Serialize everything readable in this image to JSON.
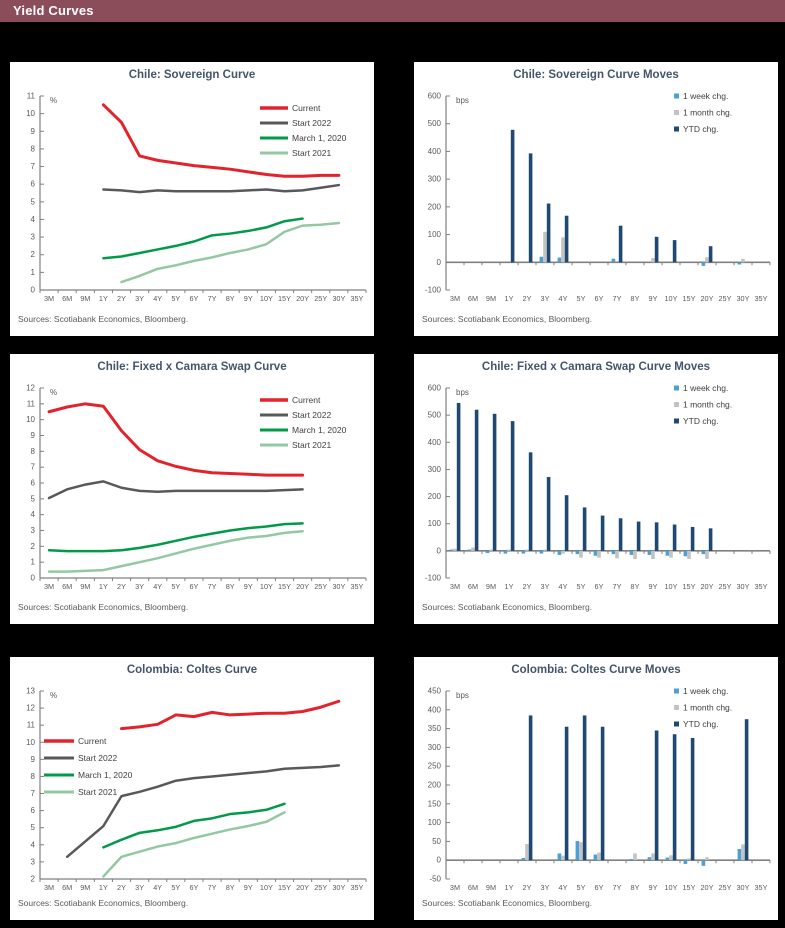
{
  "header": {
    "title": "Yield Curves"
  },
  "colors": {
    "header_bg": "#8C4D5B",
    "page_bg": "#000000",
    "panel_border": "#000000",
    "axis": "#808080",
    "tick_text": "#595959",
    "title_text": "#44546A",
    "legend_text": "#404040",
    "current_red": "#E3232C",
    "start2022_gray": "#58595B",
    "march2020_green": "#009A49",
    "start2021_sage": "#93C8A3",
    "week_blue": "#4BA0D6",
    "month_gray": "#C3C3C3",
    "ytd_navy": "#1F4872"
  },
  "source_note": "Sources: Scotiabank Economics, Bloomberg.",
  "categories": [
    "3M",
    "6M",
    "9M",
    "1Y",
    "2Y",
    "3Y",
    "4Y",
    "5Y",
    "6Y",
    "7Y",
    "8Y",
    "9Y",
    "10Y",
    "15Y",
    "20Y",
    "25Y",
    "30Y",
    "35Y"
  ],
  "chart_data": [
    {
      "type": "line",
      "title": "Chile:  Sovereign Curve",
      "unit": "%",
      "ylim": [
        0,
        11
      ],
      "ytick_step": 1,
      "legend_pos": "tr",
      "series": [
        {
          "name": "Current",
          "color": "#E3232C",
          "values": [
            null,
            null,
            null,
            10.5,
            9.5,
            7.6,
            7.35,
            7.2,
            7.05,
            6.95,
            6.85,
            6.7,
            6.55,
            6.45,
            6.45,
            6.5,
            6.5,
            null
          ]
        },
        {
          "name": "Start 2022",
          "color": "#58595B",
          "values": [
            null,
            null,
            null,
            5.7,
            5.65,
            5.55,
            5.65,
            5.6,
            5.6,
            5.6,
            5.6,
            5.65,
            5.7,
            5.6,
            5.65,
            5.8,
            5.95,
            null
          ]
        },
        {
          "name": "March 1, 2020",
          "color": "#009A49",
          "values": [
            null,
            null,
            null,
            1.8,
            1.9,
            2.1,
            2.3,
            2.5,
            2.75,
            3.1,
            3.2,
            3.35,
            3.55,
            3.9,
            4.05,
            null,
            null,
            null
          ]
        },
        {
          "name": "Start 2021",
          "color": "#93C8A3",
          "values": [
            null,
            null,
            null,
            null,
            0.45,
            0.8,
            1.2,
            1.4,
            1.65,
            1.85,
            2.1,
            2.3,
            2.6,
            3.3,
            3.65,
            3.7,
            3.8,
            null
          ]
        }
      ]
    },
    {
      "type": "bar",
      "title": "Chile:  Sovereign Curve Moves",
      "unit": "bps",
      "ylim": [
        -100,
        600
      ],
      "ytick_step": 100,
      "legend_pos": "tr",
      "series": [
        {
          "name": "1 week chg.",
          "color": "#4BA0D6",
          "values": [
            null,
            null,
            null,
            null,
            null,
            20,
            17,
            null,
            null,
            13,
            null,
            null,
            null,
            null,
            -13,
            null,
            -8,
            null
          ]
        },
        {
          "name": "1 month chg.",
          "color": "#C3C3C3",
          "values": [
            null,
            null,
            null,
            null,
            null,
            110,
            90,
            null,
            null,
            null,
            null,
            15,
            null,
            null,
            18,
            null,
            12,
            null
          ]
        },
        {
          "name": "YTD chg.",
          "color": "#1F4872",
          "values": [
            null,
            null,
            null,
            478,
            393,
            212,
            168,
            null,
            null,
            132,
            null,
            92,
            80,
            null,
            58,
            null,
            null,
            null
          ]
        }
      ]
    },
    {
      "type": "line",
      "title": "Chile:  Fixed x Camara Swap Curve",
      "unit": "%",
      "ylim": [
        0,
        12
      ],
      "ytick_step": 1,
      "legend_pos": "tr",
      "series": [
        {
          "name": "Current",
          "color": "#E3232C",
          "values": [
            10.5,
            10.8,
            11.0,
            10.85,
            9.3,
            8.1,
            7.4,
            7.05,
            6.8,
            6.65,
            6.6,
            6.55,
            6.5,
            6.5,
            6.5,
            null,
            null,
            null
          ]
        },
        {
          "name": "Start 2022",
          "color": "#58595B",
          "values": [
            5.05,
            5.6,
            5.9,
            6.1,
            5.7,
            5.5,
            5.45,
            5.5,
            5.5,
            5.5,
            5.5,
            5.5,
            5.5,
            5.55,
            5.6,
            null,
            null,
            null
          ]
        },
        {
          "name": "March 1, 2020",
          "color": "#009A49",
          "values": [
            1.75,
            1.7,
            1.7,
            1.7,
            1.75,
            1.9,
            2.1,
            2.35,
            2.6,
            2.8,
            3.0,
            3.15,
            3.25,
            3.4,
            3.45,
            null,
            null,
            null
          ]
        },
        {
          "name": "Start 2021",
          "color": "#93C8A3",
          "values": [
            0.4,
            0.4,
            0.45,
            0.5,
            0.75,
            1.0,
            1.25,
            1.55,
            1.85,
            2.1,
            2.35,
            2.55,
            2.65,
            2.85,
            2.95,
            null,
            null,
            null
          ]
        }
      ]
    },
    {
      "type": "bar",
      "title": "Chile:  Fixed x Camara Swap Curve Moves",
      "unit": "bps",
      "ylim": [
        -100,
        600
      ],
      "ytick_step": 100,
      "legend_pos": "tr",
      "series": [
        {
          "name": "1 week chg.",
          "color": "#4BA0D6",
          "values": [
            5,
            5,
            -8,
            -10,
            -10,
            -10,
            -15,
            -12,
            -18,
            -12,
            -15,
            -15,
            -18,
            -20,
            -12,
            null,
            null,
            null
          ]
        },
        {
          "name": "1 month chg.",
          "color": "#C3C3C3",
          "values": [
            8,
            12,
            5,
            5,
            5,
            5,
            -10,
            -25,
            -25,
            -28,
            -30,
            -30,
            -25,
            -30,
            -30,
            null,
            null,
            null
          ]
        },
        {
          "name": "YTD chg.",
          "color": "#1F4872",
          "values": [
            545,
            520,
            505,
            478,
            363,
            272,
            205,
            160,
            130,
            120,
            108,
            105,
            97,
            88,
            83,
            null,
            null,
            null
          ]
        }
      ]
    },
    {
      "type": "line",
      "title": "Colombia:  Coltes Curve",
      "unit": "%",
      "ylim": [
        2,
        13
      ],
      "ytick_step": 1,
      "legend_pos": "left",
      "series": [
        {
          "name": "Current",
          "color": "#E3232C",
          "values": [
            null,
            null,
            null,
            null,
            10.8,
            10.9,
            11.05,
            11.6,
            11.5,
            11.75,
            11.6,
            11.65,
            11.7,
            11.7,
            11.8,
            12.05,
            12.4,
            null
          ]
        },
        {
          "name": "Start 2022",
          "color": "#58595B",
          "values": [
            null,
            3.3,
            null,
            5.1,
            6.85,
            7.1,
            7.4,
            7.75,
            7.9,
            8.0,
            8.1,
            8.2,
            8.3,
            8.45,
            8.5,
            8.55,
            8.65,
            null
          ]
        },
        {
          "name": "March 1, 2020",
          "color": "#009A49",
          "values": [
            null,
            null,
            null,
            3.85,
            4.3,
            4.7,
            4.85,
            5.05,
            5.4,
            5.55,
            5.8,
            5.9,
            6.05,
            6.4,
            null,
            null,
            null,
            null
          ]
        },
        {
          "name": "Start 2021",
          "color": "#93C8A3",
          "values": [
            null,
            null,
            null,
            2.15,
            3.3,
            3.6,
            3.9,
            4.1,
            4.4,
            4.65,
            4.9,
            5.1,
            5.35,
            5.9,
            null,
            null,
            null,
            null
          ]
        }
      ]
    },
    {
      "type": "bar",
      "title": "Colombia:  Coltes Curve Moves",
      "unit": "bps",
      "ylim": [
        -50,
        450
      ],
      "ytick_step": 50,
      "legend_pos": "tr",
      "series": [
        {
          "name": "1 week chg.",
          "color": "#4BA0D6",
          "values": [
            null,
            null,
            null,
            null,
            6,
            null,
            18,
            51,
            15,
            null,
            3,
            8,
            7,
            -10,
            -15,
            null,
            30,
            null
          ]
        },
        {
          "name": "1 month chg.",
          "color": "#C3C3C3",
          "values": [
            null,
            null,
            null,
            null,
            43,
            null,
            12,
            48,
            20,
            null,
            18,
            18,
            13,
            5,
            8,
            null,
            42,
            null
          ]
        },
        {
          "name": "YTD chg.",
          "color": "#1F4872",
          "values": [
            null,
            null,
            null,
            null,
            385,
            null,
            355,
            385,
            355,
            null,
            null,
            345,
            335,
            325,
            null,
            null,
            375,
            null
          ]
        }
      ]
    }
  ]
}
